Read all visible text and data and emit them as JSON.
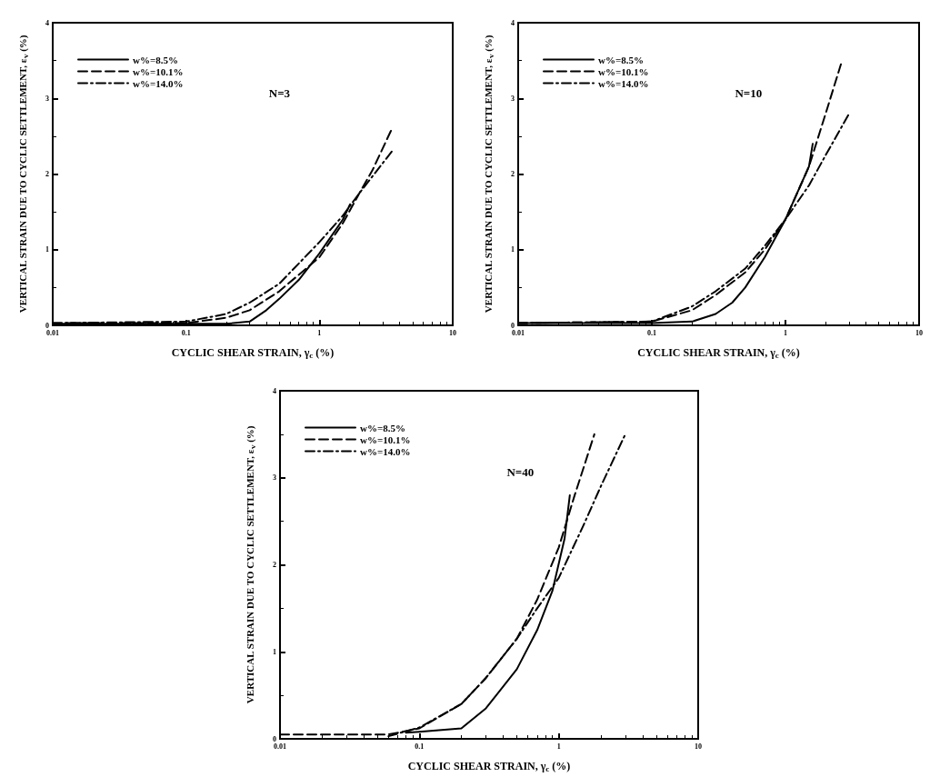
{
  "chart_data": [
    {
      "type": "line",
      "xlabel": "CYCLIC SHEAR STRAIN, γ$_{c}$ (%)",
      "ylabel": "VERTICAL STRAIN DUE TO CYCLIC SETTLEMENT, ε$_{v}$ (%)",
      "annotations": [
        "N=3"
      ],
      "log": "x",
      "xlim": [
        0.01,
        10
      ],
      "xticks": [
        0.01,
        0.1,
        1,
        10
      ],
      "ylim": [
        0,
        4
      ],
      "yticks": [
        0,
        1,
        2,
        3,
        4
      ],
      "legend": "top left",
      "marker": "none",
      "grid": false,
      "series": [
        {
          "name": "w%=8.5%",
          "color": "#000000",
          "line_style": "solid",
          "x": [
            0.01,
            0.1,
            0.2,
            0.3,
            0.4,
            0.5,
            0.7,
            1,
            1.5,
            1.7
          ],
          "values": [
            0.02,
            0.02,
            0.02,
            0.05,
            0.2,
            0.35,
            0.6,
            0.95,
            1.4,
            1.6
          ]
        },
        {
          "name": "w%=10.1%",
          "color": "#000000",
          "line_style": "dashed",
          "x": [
            0.01,
            0.1,
            0.2,
            0.3,
            0.5,
            1,
            1.5,
            2,
            2.5,
            3.5
          ],
          "values": [
            0.03,
            0.03,
            0.1,
            0.2,
            0.45,
            0.9,
            1.35,
            1.75,
            2.05,
            2.6
          ]
        },
        {
          "name": "w%=14.0%",
          "color": "#000000",
          "line_style": "dashdot",
          "x": [
            0.01,
            0.1,
            0.2,
            0.3,
            0.5,
            1,
            1.5,
            2,
            3.5
          ],
          "values": [
            0.03,
            0.05,
            0.15,
            0.3,
            0.55,
            1.1,
            1.45,
            1.75,
            2.3
          ]
        }
      ]
    },
    {
      "type": "line",
      "xlabel": "CYCLIC SHEAR STRAIN, γ$_{c}$ (%)",
      "ylabel": "VERTICAL STRAIN DUE TO CYCLIC SETTLEMENT, ε$_{v}$ (%)",
      "annotations": [
        "N=10"
      ],
      "log": "x",
      "xlim": [
        0.01,
        10
      ],
      "xticks": [
        0.01,
        0.1,
        1,
        10
      ],
      "ylim": [
        0,
        4
      ],
      "yticks": [
        0,
        1,
        2,
        3,
        4
      ],
      "legend": "top left",
      "marker": "none",
      "grid": false,
      "series": [
        {
          "name": "w%=8.5%",
          "color": "#000000",
          "line_style": "solid",
          "x": [
            0.01,
            0.1,
            0.2,
            0.3,
            0.4,
            0.5,
            0.7,
            1,
            1.5,
            1.6
          ],
          "values": [
            0.03,
            0.03,
            0.05,
            0.15,
            0.3,
            0.5,
            0.9,
            1.4,
            2.1,
            2.4
          ]
        },
        {
          "name": "w%=10.1%",
          "color": "#000000",
          "line_style": "dashed",
          "x": [
            0.01,
            0.1,
            0.2,
            0.3,
            0.5,
            0.7,
            1,
            1.5,
            2,
            2.6
          ],
          "values": [
            0.03,
            0.05,
            0.2,
            0.4,
            0.7,
            1.0,
            1.4,
            2.1,
            2.8,
            3.45
          ]
        },
        {
          "name": "w%=14.0%",
          "color": "#000000",
          "line_style": "dashdot",
          "x": [
            0.01,
            0.1,
            0.2,
            0.3,
            0.5,
            0.7,
            1,
            1.5,
            2,
            3
          ],
          "values": [
            0.03,
            0.05,
            0.25,
            0.45,
            0.75,
            1.05,
            1.4,
            1.85,
            2.25,
            2.8
          ]
        }
      ]
    },
    {
      "type": "line",
      "xlabel": "CYCLIC SHEAR STRAIN, γ$_{c}$ (%)",
      "ylabel": "VERTICAL STRAIN DUE TO CYCLIC SETTLEMENT, ε$_{v}$ (%)",
      "annotations": [
        "N=40"
      ],
      "log": "x",
      "xlim": [
        0.01,
        10
      ],
      "xticks": [
        0.01,
        0.1,
        1,
        10
      ],
      "ylim": [
        0,
        4
      ],
      "yticks": [
        0,
        1,
        2,
        3,
        4
      ],
      "legend": "top left",
      "marker": "none",
      "grid": false,
      "series": [
        {
          "name": "w%=8.5%",
          "color": "#000000",
          "line_style": "solid",
          "x": [
            0.08,
            0.1,
            0.2,
            0.3,
            0.5,
            0.7,
            0.9,
            1.1,
            1.2
          ],
          "values": [
            0.07,
            0.08,
            0.12,
            0.35,
            0.8,
            1.25,
            1.7,
            2.3,
            2.8
          ]
        },
        {
          "name": "w%=10.1%",
          "color": "#000000",
          "line_style": "dashed",
          "x": [
            0.01,
            0.06,
            0.1,
            0.2,
            0.3,
            0.5,
            0.7,
            1,
            1.3,
            1.8
          ],
          "values": [
            0.05,
            0.05,
            0.12,
            0.4,
            0.7,
            1.15,
            1.6,
            2.2,
            2.8,
            3.5
          ]
        },
        {
          "name": "w%=14.0%",
          "color": "#000000",
          "line_style": "dashdot",
          "x": [
            0.06,
            0.1,
            0.2,
            0.3,
            0.5,
            0.7,
            1,
            1.5,
            2,
            3
          ],
          "values": [
            0.03,
            0.13,
            0.4,
            0.7,
            1.15,
            1.5,
            1.85,
            2.45,
            2.9,
            3.5
          ]
        }
      ]
    }
  ]
}
